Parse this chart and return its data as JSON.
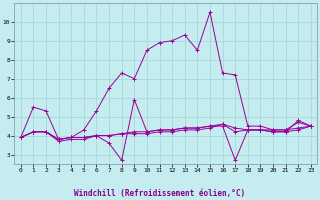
{
  "xlabel": "Windchill (Refroidissement éolien,°C)",
  "background_color": "#c5edf0",
  "grid_color": "#a8d8dc",
  "line_color": "#990099",
  "xlim": [
    -0.5,
    23.5
  ],
  "ylim": [
    2.5,
    11.0
  ],
  "yticks": [
    3,
    4,
    5,
    6,
    7,
    8,
    9,
    10
  ],
  "xticks": [
    0,
    1,
    2,
    3,
    4,
    5,
    6,
    7,
    8,
    9,
    10,
    11,
    12,
    13,
    14,
    15,
    16,
    17,
    18,
    19,
    20,
    21,
    22,
    23
  ],
  "series": [
    [
      3.9,
      5.5,
      5.3,
      3.8,
      3.9,
      4.3,
      5.3,
      6.5,
      7.3,
      7.0,
      8.5,
      8.9,
      9.0,
      9.3,
      8.5,
      10.5,
      7.3,
      7.2,
      4.5,
      4.5,
      4.3,
      4.3,
      4.7,
      4.5
    ],
    [
      3.9,
      4.2,
      4.2,
      3.7,
      3.8,
      3.8,
      4.0,
      3.6,
      2.7,
      5.9,
      4.2,
      4.3,
      4.3,
      4.4,
      4.4,
      4.5,
      4.5,
      2.7,
      4.3,
      4.3,
      4.2,
      4.2,
      4.8,
      4.5
    ],
    [
      3.9,
      4.2,
      4.2,
      3.8,
      3.9,
      3.9,
      4.0,
      4.0,
      4.1,
      4.2,
      4.2,
      4.3,
      4.3,
      4.4,
      4.4,
      4.5,
      4.6,
      4.2,
      4.3,
      4.3,
      4.3,
      4.3,
      4.4,
      4.5
    ],
    [
      3.9,
      4.2,
      4.2,
      3.8,
      3.9,
      3.9,
      4.0,
      4.0,
      4.1,
      4.1,
      4.1,
      4.2,
      4.2,
      4.3,
      4.3,
      4.4,
      4.6,
      4.4,
      4.3,
      4.3,
      4.2,
      4.2,
      4.3,
      4.5
    ]
  ]
}
